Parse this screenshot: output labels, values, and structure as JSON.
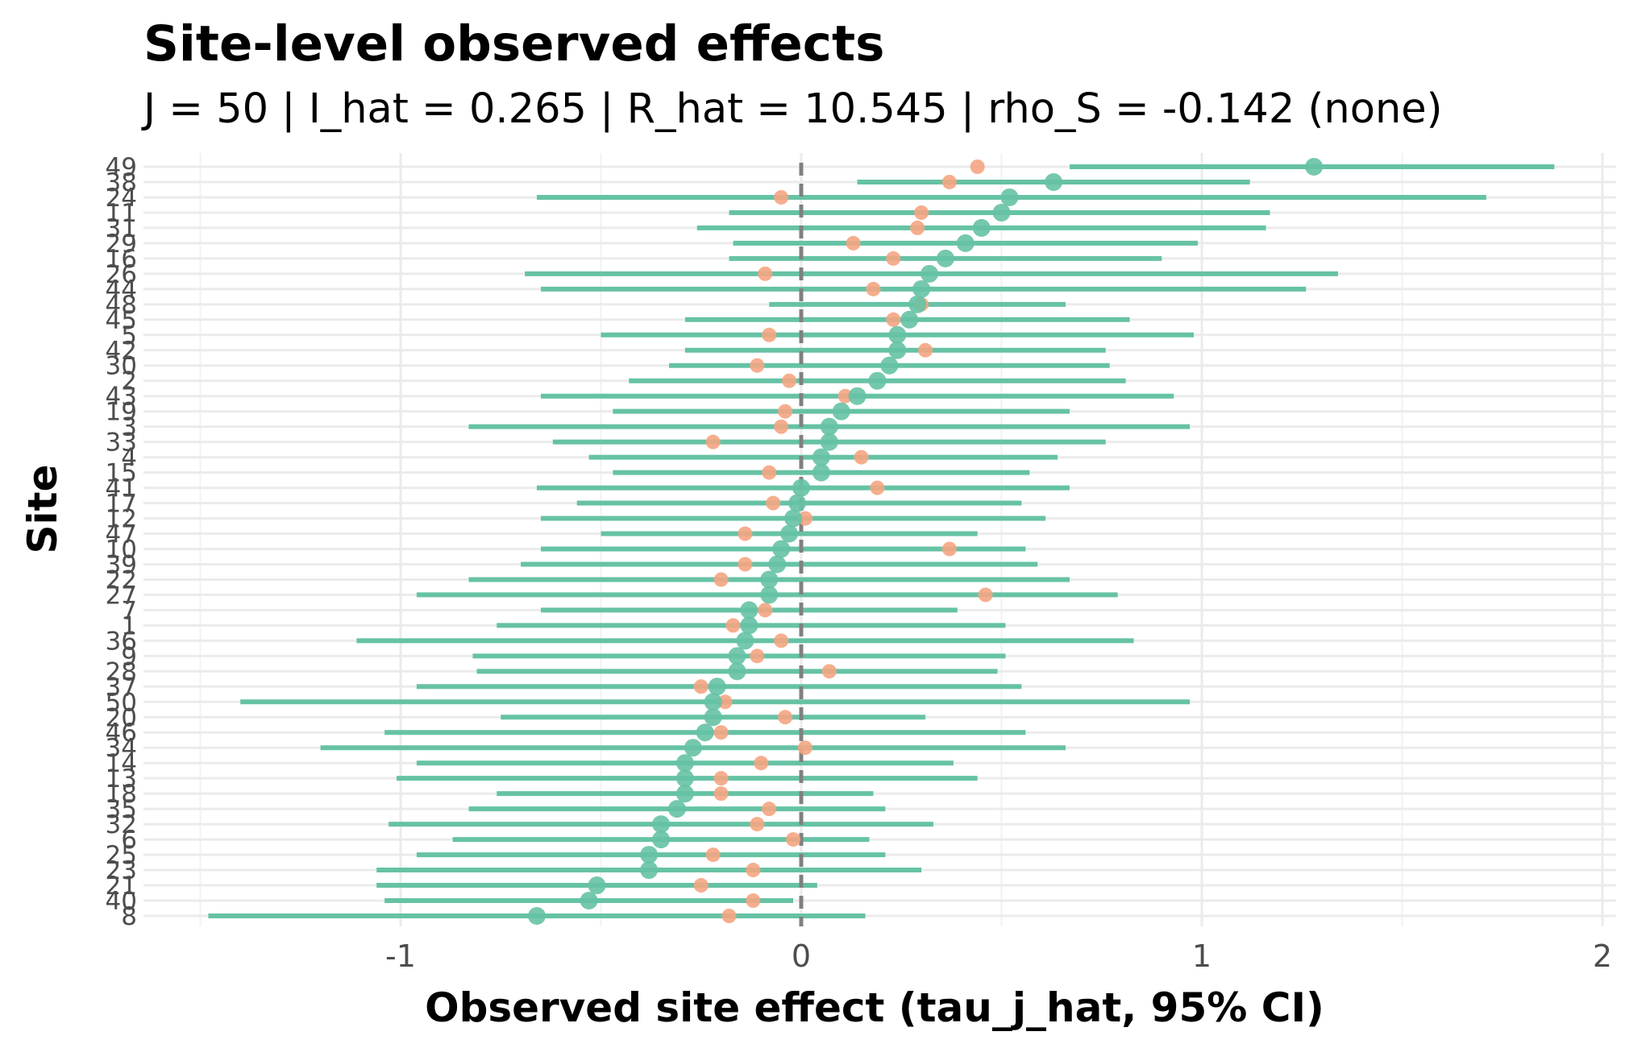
{
  "chart_data": {
    "type": "scatter",
    "title": "Site-level observed effects",
    "subtitle": "J = 50 | I_hat = 0.265 | R_hat = 10.545 | rho_S = -0.142 (none)",
    "xlabel": "Observed site effect (tau_j_hat, 95% CI)",
    "ylabel": "Site",
    "xlim": [
      -1.65,
      2.05
    ],
    "x_ticks": [
      -1,
      0,
      1,
      2
    ],
    "x_tick_labels": [
      "-1",
      "0",
      "1",
      "2"
    ],
    "reference_line": 0,
    "grid": true,
    "legend": "none",
    "colors": {
      "observed": "#66c2a5",
      "comparison": "#f4a582",
      "reference": "#808080"
    },
    "sites": [
      {
        "site": "8",
        "tau": -0.66,
        "lo": -1.48,
        "hi": 0.16,
        "other": -0.18
      },
      {
        "site": "40",
        "tau": -0.53,
        "lo": -1.04,
        "hi": -0.02,
        "other": -0.12
      },
      {
        "site": "21",
        "tau": -0.51,
        "lo": -1.06,
        "hi": 0.04,
        "other": -0.25
      },
      {
        "site": "23",
        "tau": -0.38,
        "lo": -1.06,
        "hi": 0.3,
        "other": -0.12
      },
      {
        "site": "25",
        "tau": -0.38,
        "lo": -0.96,
        "hi": 0.21,
        "other": -0.22
      },
      {
        "site": "6",
        "tau": -0.35,
        "lo": -0.87,
        "hi": 0.17,
        "other": -0.02
      },
      {
        "site": "32",
        "tau": -0.35,
        "lo": -1.03,
        "hi": 0.33,
        "other": -0.11
      },
      {
        "site": "35",
        "tau": -0.31,
        "lo": -0.83,
        "hi": 0.21,
        "other": -0.08
      },
      {
        "site": "18",
        "tau": -0.29,
        "lo": -0.76,
        "hi": 0.18,
        "other": -0.2
      },
      {
        "site": "13",
        "tau": -0.29,
        "lo": -1.01,
        "hi": 0.44,
        "other": -0.2
      },
      {
        "site": "14",
        "tau": -0.29,
        "lo": -0.96,
        "hi": 0.38,
        "other": -0.1
      },
      {
        "site": "34",
        "tau": -0.27,
        "lo": -1.2,
        "hi": 0.66,
        "other": 0.01
      },
      {
        "site": "46",
        "tau": -0.24,
        "lo": -1.04,
        "hi": 0.56,
        "other": -0.2
      },
      {
        "site": "20",
        "tau": -0.22,
        "lo": -0.75,
        "hi": 0.31,
        "other": -0.04
      },
      {
        "site": "50",
        "tau": -0.22,
        "lo": -1.4,
        "hi": 0.97,
        "other": -0.19
      },
      {
        "site": "37",
        "tau": -0.21,
        "lo": -0.96,
        "hi": 0.55,
        "other": -0.25
      },
      {
        "site": "28",
        "tau": -0.16,
        "lo": -0.81,
        "hi": 0.49,
        "other": 0.07
      },
      {
        "site": "9",
        "tau": -0.16,
        "lo": -0.82,
        "hi": 0.51,
        "other": -0.11
      },
      {
        "site": "36",
        "tau": -0.14,
        "lo": -1.11,
        "hi": 0.83,
        "other": -0.05
      },
      {
        "site": "1",
        "tau": -0.13,
        "lo": -0.76,
        "hi": 0.51,
        "other": -0.17
      },
      {
        "site": "7",
        "tau": -0.13,
        "lo": -0.65,
        "hi": 0.39,
        "other": -0.09
      },
      {
        "site": "27",
        "tau": -0.08,
        "lo": -0.96,
        "hi": 0.79,
        "other": 0.46
      },
      {
        "site": "22",
        "tau": -0.08,
        "lo": -0.83,
        "hi": 0.67,
        "other": -0.2
      },
      {
        "site": "39",
        "tau": -0.06,
        "lo": -0.7,
        "hi": 0.59,
        "other": -0.14
      },
      {
        "site": "10",
        "tau": -0.05,
        "lo": -0.65,
        "hi": 0.56,
        "other": 0.37
      },
      {
        "site": "47",
        "tau": -0.03,
        "lo": -0.5,
        "hi": 0.44,
        "other": -0.14
      },
      {
        "site": "12",
        "tau": -0.02,
        "lo": -0.65,
        "hi": 0.61,
        "other": 0.01
      },
      {
        "site": "17",
        "tau": -0.01,
        "lo": -0.56,
        "hi": 0.55,
        "other": -0.07
      },
      {
        "site": "41",
        "tau": 0.0,
        "lo": -0.66,
        "hi": 0.67,
        "other": 0.19
      },
      {
        "site": "15",
        "tau": 0.05,
        "lo": -0.47,
        "hi": 0.57,
        "other": -0.08
      },
      {
        "site": "4",
        "tau": 0.05,
        "lo": -0.53,
        "hi": 0.64,
        "other": 0.15
      },
      {
        "site": "33",
        "tau": 0.07,
        "lo": -0.62,
        "hi": 0.76,
        "other": -0.22
      },
      {
        "site": "3",
        "tau": 0.07,
        "lo": -0.83,
        "hi": 0.97,
        "other": -0.05
      },
      {
        "site": "19",
        "tau": 0.1,
        "lo": -0.47,
        "hi": 0.67,
        "other": -0.04
      },
      {
        "site": "43",
        "tau": 0.14,
        "lo": -0.65,
        "hi": 0.93,
        "other": 0.11
      },
      {
        "site": "2",
        "tau": 0.19,
        "lo": -0.43,
        "hi": 0.81,
        "other": -0.03
      },
      {
        "site": "30",
        "tau": 0.22,
        "lo": -0.33,
        "hi": 0.77,
        "other": -0.11
      },
      {
        "site": "42",
        "tau": 0.24,
        "lo": -0.29,
        "hi": 0.76,
        "other": 0.31
      },
      {
        "site": "5",
        "tau": 0.24,
        "lo": -0.5,
        "hi": 0.98,
        "other": -0.08
      },
      {
        "site": "45",
        "tau": 0.27,
        "lo": -0.29,
        "hi": 0.82,
        "other": 0.23
      },
      {
        "site": "48",
        "tau": 0.29,
        "lo": -0.08,
        "hi": 0.66,
        "other": 0.3
      },
      {
        "site": "44",
        "tau": 0.3,
        "lo": -0.65,
        "hi": 1.26,
        "other": 0.18
      },
      {
        "site": "26",
        "tau": 0.32,
        "lo": -0.69,
        "hi": 1.34,
        "other": -0.09
      },
      {
        "site": "16",
        "tau": 0.36,
        "lo": -0.18,
        "hi": 0.9,
        "other": 0.23
      },
      {
        "site": "29",
        "tau": 0.41,
        "lo": -0.17,
        "hi": 0.99,
        "other": 0.13
      },
      {
        "site": "31",
        "tau": 0.45,
        "lo": -0.26,
        "hi": 1.16,
        "other": 0.29
      },
      {
        "site": "11",
        "tau": 0.5,
        "lo": -0.18,
        "hi": 1.17,
        "other": 0.3
      },
      {
        "site": "24",
        "tau": 0.52,
        "lo": -0.66,
        "hi": 1.71,
        "other": -0.05
      },
      {
        "site": "38",
        "tau": 0.63,
        "lo": 0.14,
        "hi": 1.12,
        "other": 0.37
      },
      {
        "site": "49",
        "tau": 1.28,
        "lo": 0.67,
        "hi": 1.88,
        "other": 0.44
      }
    ]
  }
}
